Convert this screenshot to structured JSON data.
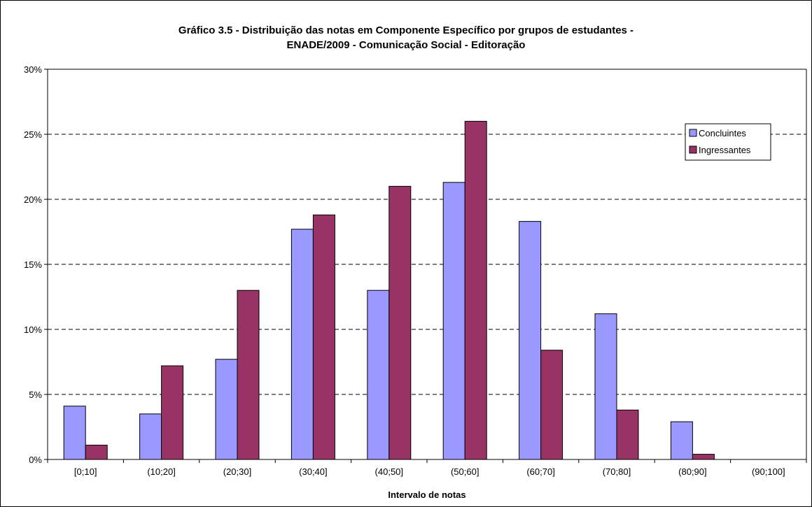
{
  "chart_data": {
    "type": "bar",
    "title_lines": [
      "Gráfico 3.5 - Distribuição das notas em Componente Específico por grupos de estudantes -",
      "ENADE/2009 - Comunicação Social - Editoração"
    ],
    "xlabel": "Intervalo de notas",
    "ylabel": "",
    "categories": [
      "[0;10]",
      "(10;20]",
      "(20;30]",
      "(30;40]",
      "(40;50]",
      "(50;60]",
      "(60;70]",
      "(70;80]",
      "(80;90]",
      "(90;100]"
    ],
    "series": [
      {
        "name": "Concluintes",
        "color": "#9999ff",
        "values": [
          4.1,
          3.5,
          7.7,
          17.7,
          13.0,
          21.3,
          18.3,
          11.2,
          2.9,
          0
        ]
      },
      {
        "name": "Ingressantes",
        "color": "#993366",
        "values": [
          1.1,
          7.2,
          13.0,
          18.8,
          21.0,
          26.0,
          8.4,
          3.8,
          0.4,
          0
        ]
      }
    ],
    "ylim": [
      0,
      30
    ],
    "yticks": [
      0,
      5,
      10,
      15,
      20,
      25,
      30
    ],
    "ytick_labels": [
      "0%",
      "5%",
      "10%",
      "15%",
      "20%",
      "25%",
      "30%"
    ],
    "grid": "horizontal dashed",
    "legend_position": "right"
  }
}
